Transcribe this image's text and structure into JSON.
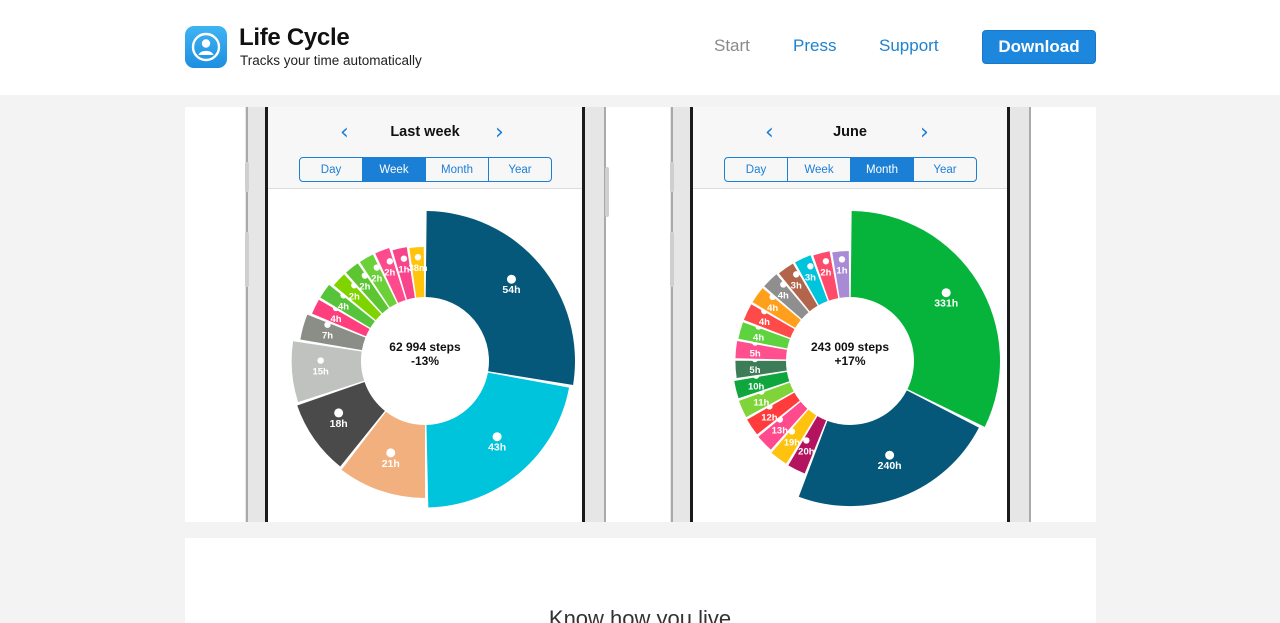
{
  "header": {
    "brand_title": "Life Cycle",
    "brand_tagline": "Tracks your time automatically",
    "logo_icon": "person-icon",
    "nav": [
      {
        "label": "Start"
      },
      {
        "label": "Press"
      },
      {
        "label": "Support"
      }
    ],
    "download_label": "Download"
  },
  "phones": [
    {
      "title": "Last week",
      "segments": [
        "Day",
        "Week",
        "Month",
        "Year"
      ],
      "active_segment": "Week",
      "center_primary": "62 994 steps",
      "center_secondary": "-13%",
      "slices": [
        {
          "label": "54h",
          "hours": 54,
          "color": "#06587a",
          "icon": "moon-icon"
        },
        {
          "label": "43h",
          "hours": 43,
          "color": "#00c3dc",
          "icon": "home-icon"
        },
        {
          "label": "21h",
          "hours": 21,
          "color": "#f2b07f",
          "icon": "bed-icon"
        },
        {
          "label": "18h",
          "hours": 18,
          "color": "#4a4a4a",
          "icon": "wheel-icon"
        },
        {
          "label": "15h",
          "hours": 15,
          "color": "#bfc2bf",
          "icon": "plane-icon"
        },
        {
          "label": "7h",
          "hours": 7,
          "color": "#8b8e87",
          "icon": "hourglass-icon"
        },
        {
          "label": "4h",
          "hours": 4,
          "color": "#ff3f7d",
          "icon": "walk-icon"
        },
        {
          "label": "4h",
          "hours": 4,
          "color": "#56c43b",
          "icon": "fork-knife-icon"
        },
        {
          "label": "2h",
          "hours": 2,
          "color": "#7fd400",
          "icon": "command-icon"
        },
        {
          "label": "2h",
          "hours": 2,
          "color": "#5dc532",
          "icon": "book-icon"
        },
        {
          "label": "2h",
          "hours": 2,
          "color": "#6cd138",
          "icon": "horse-icon"
        },
        {
          "label": "2h",
          "hours": 2,
          "color": "#ff4b8d",
          "icon": "running-icon"
        },
        {
          "label": "1h",
          "hours": 1,
          "color": "#f7448a",
          "icon": "dancer-icon"
        },
        {
          "label": "38m",
          "hours": 0.7,
          "color": "#ffc40b",
          "icon": "bag-icon"
        }
      ]
    },
    {
      "title": "June",
      "segments": [
        "Day",
        "Week",
        "Month",
        "Year"
      ],
      "active_segment": "Month",
      "center_primary": "243 009 steps",
      "center_secondary": "+17%",
      "slices": [
        {
          "label": "331h",
          "hours": 331,
          "color": "#06b43b",
          "icon": "home-icon"
        },
        {
          "label": "240h",
          "hours": 240,
          "color": "#06587a",
          "icon": "bed-icon"
        },
        {
          "label": "20h",
          "hours": 20,
          "color": "#b3135f",
          "icon": "sofa-icon"
        },
        {
          "label": "19h",
          "hours": 19,
          "color": "#ffc30f",
          "icon": "walk-icon"
        },
        {
          "label": "13h",
          "hours": 13,
          "color": "#ff4b8d",
          "icon": "people-icon"
        },
        {
          "label": "12h",
          "hours": 12,
          "color": "#ff3b3b",
          "icon": "ball-icon"
        },
        {
          "label": "11h",
          "hours": 11,
          "color": "#7fd43a",
          "icon": "hospital-icon"
        },
        {
          "label": "10h",
          "hours": 10,
          "color": "#10a63e",
          "icon": "family-icon"
        },
        {
          "label": "5h",
          "hours": 5,
          "color": "#3c7c57",
          "icon": "stethoscope-icon"
        },
        {
          "label": "5h",
          "hours": 5,
          "color": "#ff4f8f",
          "icon": "blocks-icon"
        },
        {
          "label": "4h",
          "hours": 4,
          "color": "#5fd23f",
          "icon": "people-icon"
        },
        {
          "label": "4h",
          "hours": 4,
          "color": "#ff4a4a",
          "icon": "fork-knife-icon"
        },
        {
          "label": "4h",
          "hours": 4,
          "color": "#ff9f1c",
          "icon": "wrench-icon"
        },
        {
          "label": "4h",
          "hours": 4,
          "color": "#8f8f8f",
          "icon": "wheel-icon"
        },
        {
          "label": "3h",
          "hours": 3,
          "color": "#b2654a",
          "icon": "basket-icon"
        },
        {
          "label": "3h",
          "hours": 3,
          "color": "#00c3dc",
          "icon": "briefcase-icon"
        },
        {
          "label": "2h",
          "hours": 2,
          "color": "#ff4b6b",
          "icon": "book-icon"
        },
        {
          "label": "1h",
          "hours": 1,
          "color": "#a98bd5",
          "icon": "binoculars-icon"
        }
      ]
    }
  ],
  "lower": {
    "heading": "Know how you live"
  }
}
